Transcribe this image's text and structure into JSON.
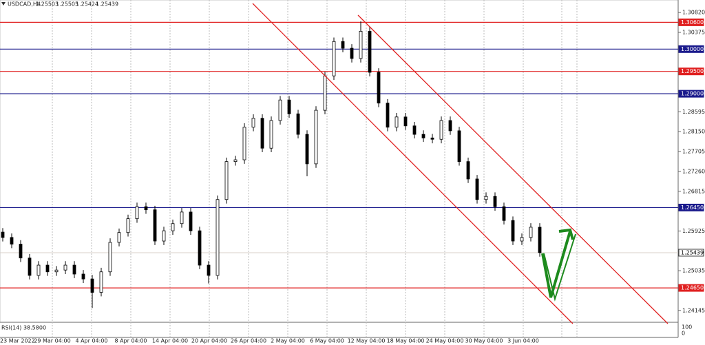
{
  "chart_data": {
    "type": "candlestick",
    "title": "USDCAD,H4",
    "quote": [
      "1.25503",
      "1.25505",
      "1.25424",
      "1.25439"
    ],
    "indicator": "RSI(14) 38.5800",
    "indicator_ticks": [
      "100",
      "0"
    ],
    "categories": [
      "23 Mar 2022",
      "29 Mar 04:00",
      "4 Apr 04:00",
      "8 Apr 04:00",
      "14 Apr 04:00",
      "20 Apr 04:00",
      "26 Apr 04:00",
      "2 May 04:00",
      "6 May 04:00",
      "12 May 04:00",
      "18 May 04:00",
      "24 May 04:00",
      "30 May 04:00",
      "3 Jun 04:00"
    ],
    "ylim": [
      1.2388,
      1.311
    ],
    "yticks": [
      {
        "value": 1.3082,
        "label": "1.30820"
      },
      1.30375,
      1.28595,
      {
        "value": 1.2815,
        "label": "1.28150"
      },
      1.27705,
      {
        "value": 1.2726,
        "label": "1.27260"
      },
      1.26815,
      1.25925,
      1.25035,
      1.24145
    ],
    "levels": [
      {
        "value": 1.306,
        "label": "1.30600",
        "color": "#e02020"
      },
      {
        "value": 1.3,
        "label": "1.30000",
        "color": "#1a1a8c"
      },
      {
        "value": 1.295,
        "label": "1.29500",
        "color": "#e02020"
      },
      {
        "value": 1.29,
        "label": "1.29000",
        "color": "#1a1a8c"
      },
      {
        "value": 1.2645,
        "label": "1.26450",
        "color": "#1a1a8c"
      },
      {
        "value": 1.2465,
        "label": "1.24650",
        "color": "#e02020"
      }
    ],
    "current": {
      "value": 1.25439,
      "label": "1.25439",
      "color": "#d8d0c8"
    },
    "open": [
      1.259,
      1.2578,
      1.2563,
      1.2532,
      1.2493,
      1.2516,
      1.2501,
      1.2505,
      1.2516,
      1.2496,
      1.2485,
      1.2455,
      1.2501,
      1.2567,
      1.2589,
      1.262,
      1.2647,
      1.264,
      1.257,
      1.2593,
      1.2609,
      1.2635,
      1.2593,
      1.2516,
      1.2493,
      1.2663,
      1.2748,
      1.2752,
      1.2825,
      1.2845,
      1.2778,
      1.284,
      1.2886,
      1.2855,
      1.2809,
      1.2743,
      1.2863,
      1.294,
      1.3017,
      1.3002,
      1.2979,
      1.304,
      1.2948,
      1.2879,
      1.2825,
      1.2848,
      1.2828,
      1.2809,
      1.2801,
      1.2798,
      1.284,
      1.2817,
      1.2748,
      1.2709,
      1.2663,
      1.267,
      1.2647,
      1.2616,
      1.257,
      1.2578,
      1.2601
    ],
    "high": [
      1.2599,
      1.2587,
      1.2572,
      1.2541,
      1.2525,
      1.2525,
      1.2514,
      1.2525,
      1.2525,
      1.2505,
      1.2494,
      1.251,
      1.2576,
      1.2598,
      1.2629,
      1.2656,
      1.2656,
      1.2649,
      1.2602,
      1.2618,
      1.2644,
      1.2644,
      1.2602,
      1.2525,
      1.2672,
      1.2757,
      1.2761,
      1.2834,
      1.2854,
      1.2854,
      1.2849,
      1.2895,
      1.2895,
      1.2864,
      1.2818,
      1.2872,
      1.2949,
      1.3026,
      1.3026,
      1.3011,
      1.3062,
      1.3049,
      1.2957,
      1.2888,
      1.2857,
      1.2857,
      1.2837,
      1.2818,
      1.281,
      1.2849,
      1.2849,
      1.2826,
      1.2757,
      1.2718,
      1.2679,
      1.2679,
      1.2656,
      1.2625,
      1.2587,
      1.261,
      1.261
    ],
    "low": [
      1.2569,
      1.2554,
      1.2523,
      1.2484,
      1.2484,
      1.2492,
      1.2492,
      1.2496,
      1.2487,
      1.2476,
      1.242,
      1.2446,
      1.2492,
      1.2558,
      1.258,
      1.2611,
      1.2631,
      1.2561,
      1.2561,
      1.2584,
      1.26,
      1.2584,
      1.2507,
      1.2475,
      1.2484,
      1.2654,
      1.2739,
      1.2743,
      1.2816,
      1.2769,
      1.2769,
      1.2831,
      1.2846,
      1.28,
      1.2715,
      1.2734,
      1.2854,
      1.2931,
      1.2993,
      1.297,
      1.297,
      1.2939,
      1.287,
      1.2816,
      1.2816,
      1.2819,
      1.28,
      1.2792,
      1.2789,
      1.2789,
      1.2808,
      1.2739,
      1.27,
      1.2654,
      1.2654,
      1.2638,
      1.2607,
      1.2561,
      1.2561,
      1.2569,
      1.2535
    ],
    "close": [
      1.2578,
      1.2563,
      1.2532,
      1.2493,
      1.2516,
      1.2501,
      1.2505,
      1.2516,
      1.2496,
      1.2485,
      1.2455,
      1.2501,
      1.2567,
      1.2589,
      1.262,
      1.2647,
      1.264,
      1.257,
      1.2593,
      1.2609,
      1.2635,
      1.2593,
      1.2516,
      1.2493,
      1.2663,
      1.2748,
      1.2752,
      1.2825,
      1.2845,
      1.2778,
      1.284,
      1.2886,
      1.2855,
      1.2809,
      1.2743,
      1.2863,
      1.294,
      1.3017,
      1.3002,
      1.2979,
      1.304,
      1.2948,
      1.2879,
      1.2825,
      1.2848,
      1.2828,
      1.2809,
      1.2801,
      1.2798,
      1.284,
      1.2817,
      1.2748,
      1.2709,
      1.2663,
      1.267,
      1.2647,
      1.2616,
      1.257,
      1.2578,
      1.2601,
      1.2544
    ]
  }
}
